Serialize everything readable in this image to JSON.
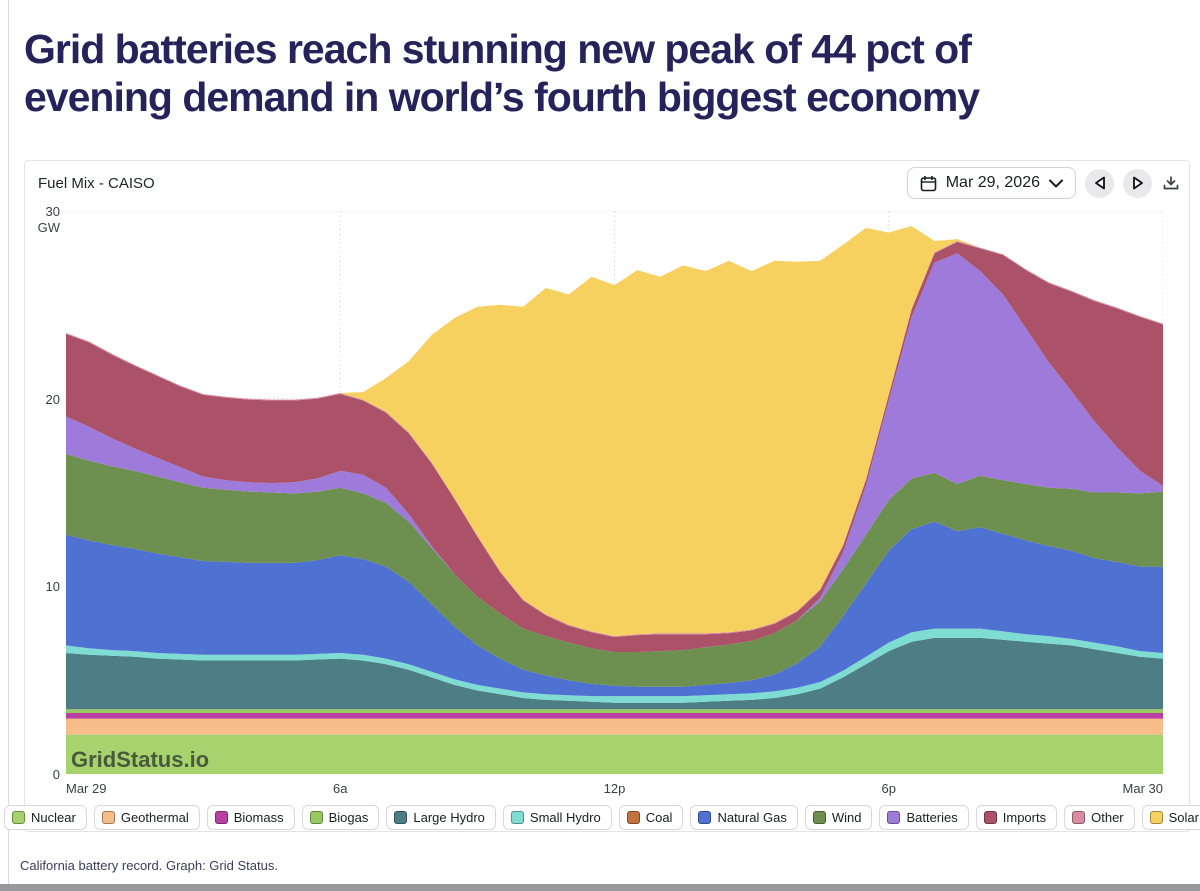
{
  "headline": {
    "line1": "Grid batteries reach stunning new peak of 44 pct of",
    "line2": "evening demand in world’s fourth biggest economy"
  },
  "caption": "California battery record. Graph: Grid Status.",
  "panel": {
    "title": "Fuel Mix - CAISO",
    "date_picker": {
      "label": "Mar 29, 2026",
      "calendar_icon": "calendar-icon",
      "chevron_icon": "chevron-down-icon"
    },
    "prev_icon": "triangle-left-icon",
    "next_icon": "triangle-right-icon",
    "download_icon": "download-icon"
  },
  "chart_data": {
    "type": "area",
    "stacked": true,
    "title": "Fuel Mix - CAISO",
    "ylabel": "GW",
    "y_unit_label": "GW",
    "ylim": [
      0,
      30
    ],
    "grid": true,
    "legend_position": "bottom",
    "x_start_hour": 0,
    "x_end_hour": 24,
    "step_hours": 0.5,
    "yticks": [
      {
        "v": 30,
        "label": "30"
      },
      {
        "v": 20,
        "label": "20"
      },
      {
        "v": 10,
        "label": "10"
      },
      {
        "v": 0,
        "label": "0"
      }
    ],
    "xticks": [
      {
        "t": 0,
        "label": "Mar 29",
        "align": "left"
      },
      {
        "t": 6,
        "label": "6a",
        "align": "center"
      },
      {
        "t": 12,
        "label": "12p",
        "align": "center"
      },
      {
        "t": 18,
        "label": "6p",
        "align": "center"
      },
      {
        "t": 24,
        "label": "Mar 30",
        "align": "right"
      }
    ],
    "grid_x_hours": [
      6,
      12,
      18,
      24
    ],
    "grid_y_values": [
      10,
      20,
      30
    ],
    "watermark": "GridStatus.io",
    "series": [
      {
        "name": "Nuclear",
        "color": "#a7d36f",
        "values": [
          2.1,
          2.1,
          2.1,
          2.1,
          2.1,
          2.1,
          2.1,
          2.1,
          2.1,
          2.1,
          2.1,
          2.1,
          2.1,
          2.1,
          2.1,
          2.1,
          2.1,
          2.1,
          2.1,
          2.1,
          2.1,
          2.1,
          2.1,
          2.1,
          2.1,
          2.1,
          2.1,
          2.1,
          2.1,
          2.1,
          2.1,
          2.1,
          2.1,
          2.1,
          2.1,
          2.1,
          2.1,
          2.1,
          2.1,
          2.1,
          2.1,
          2.1,
          2.1,
          2.1,
          2.1,
          2.1,
          2.1,
          2.1,
          2.1
        ]
      },
      {
        "name": "Geothermal",
        "color": "#f6bd8b",
        "values": [
          0.85,
          0.85,
          0.85,
          0.85,
          0.85,
          0.85,
          0.85,
          0.85,
          0.85,
          0.85,
          0.85,
          0.85,
          0.85,
          0.85,
          0.85,
          0.85,
          0.85,
          0.85,
          0.85,
          0.85,
          0.85,
          0.85,
          0.85,
          0.85,
          0.85,
          0.85,
          0.85,
          0.85,
          0.85,
          0.85,
          0.85,
          0.85,
          0.85,
          0.85,
          0.85,
          0.85,
          0.85,
          0.85,
          0.85,
          0.85,
          0.85,
          0.85,
          0.85,
          0.85,
          0.85,
          0.85,
          0.85,
          0.85,
          0.85
        ]
      },
      {
        "name": "Biomass",
        "color": "#ba3fa3",
        "values": [
          0.3,
          0.3,
          0.3,
          0.3,
          0.3,
          0.3,
          0.3,
          0.3,
          0.3,
          0.3,
          0.3,
          0.3,
          0.3,
          0.3,
          0.3,
          0.3,
          0.3,
          0.3,
          0.3,
          0.3,
          0.3,
          0.3,
          0.3,
          0.3,
          0.3,
          0.3,
          0.3,
          0.3,
          0.3,
          0.3,
          0.3,
          0.3,
          0.3,
          0.3,
          0.3,
          0.3,
          0.3,
          0.3,
          0.3,
          0.3,
          0.3,
          0.3,
          0.3,
          0.3,
          0.3,
          0.3,
          0.3,
          0.3,
          0.3
        ]
      },
      {
        "name": "Biogas",
        "color": "#99ca62",
        "values": [
          0.2,
          0.2,
          0.2,
          0.2,
          0.2,
          0.2,
          0.2,
          0.2,
          0.2,
          0.2,
          0.2,
          0.2,
          0.2,
          0.2,
          0.2,
          0.2,
          0.2,
          0.2,
          0.2,
          0.2,
          0.2,
          0.2,
          0.2,
          0.2,
          0.2,
          0.2,
          0.2,
          0.2,
          0.2,
          0.2,
          0.2,
          0.2,
          0.2,
          0.2,
          0.2,
          0.2,
          0.2,
          0.2,
          0.2,
          0.2,
          0.2,
          0.2,
          0.2,
          0.2,
          0.2,
          0.2,
          0.2,
          0.2,
          0.2
        ]
      },
      {
        "name": "Large Hydro",
        "color": "#4d7e86",
        "values": [
          3.0,
          2.9,
          2.85,
          2.8,
          2.7,
          2.65,
          2.6,
          2.6,
          2.6,
          2.6,
          2.6,
          2.65,
          2.7,
          2.6,
          2.4,
          2.1,
          1.7,
          1.3,
          1.0,
          0.8,
          0.6,
          0.5,
          0.45,
          0.4,
          0.35,
          0.35,
          0.35,
          0.35,
          0.4,
          0.45,
          0.5,
          0.6,
          0.8,
          1.1,
          1.7,
          2.4,
          3.1,
          3.6,
          3.8,
          3.8,
          3.8,
          3.7,
          3.6,
          3.5,
          3.4,
          3.2,
          3.0,
          2.8,
          2.7
        ]
      },
      {
        "name": "Small Hydro",
        "color": "#7edcd2",
        "values": [
          0.4,
          0.35,
          0.3,
          0.3,
          0.3,
          0.3,
          0.3,
          0.3,
          0.3,
          0.3,
          0.3,
          0.3,
          0.3,
          0.3,
          0.3,
          0.3,
          0.3,
          0.3,
          0.3,
          0.3,
          0.3,
          0.3,
          0.3,
          0.3,
          0.35,
          0.35,
          0.35,
          0.35,
          0.35,
          0.35,
          0.35,
          0.35,
          0.35,
          0.35,
          0.35,
          0.4,
          0.45,
          0.5,
          0.5,
          0.5,
          0.5,
          0.45,
          0.4,
          0.4,
          0.35,
          0.35,
          0.35,
          0.3,
          0.3
        ]
      },
      {
        "name": "Coal",
        "color": "#c17240",
        "values": [
          0,
          0,
          0,
          0,
          0,
          0,
          0,
          0,
          0,
          0,
          0,
          0,
          0,
          0,
          0,
          0,
          0,
          0,
          0,
          0,
          0,
          0,
          0,
          0,
          0,
          0,
          0,
          0,
          0,
          0,
          0,
          0,
          0,
          0,
          0,
          0,
          0,
          0,
          0,
          0,
          0,
          0,
          0,
          0,
          0,
          0,
          0,
          0,
          0
        ]
      },
      {
        "name": "Natural Gas",
        "color": "#4e71d2",
        "values": [
          5.9,
          5.75,
          5.6,
          5.45,
          5.3,
          5.15,
          5.0,
          4.95,
          4.9,
          4.9,
          4.9,
          5.0,
          5.2,
          5.1,
          4.9,
          4.4,
          3.6,
          2.8,
          2.1,
          1.6,
          1.2,
          1.0,
          0.8,
          0.65,
          0.55,
          0.5,
          0.5,
          0.5,
          0.55,
          0.6,
          0.7,
          0.9,
          1.3,
          1.9,
          2.9,
          3.9,
          4.9,
          5.5,
          5.7,
          5.2,
          5.4,
          5.2,
          5.0,
          4.8,
          4.7,
          4.5,
          4.5,
          4.5,
          4.6
        ]
      },
      {
        "name": "Wind",
        "color": "#6d9050",
        "values": [
          4.3,
          4.25,
          4.2,
          4.15,
          4.1,
          4.0,
          3.9,
          3.85,
          3.8,
          3.75,
          3.7,
          3.65,
          3.6,
          3.5,
          3.4,
          3.2,
          3.0,
          2.8,
          2.6,
          2.4,
          2.2,
          2.1,
          2.0,
          1.9,
          1.8,
          1.85,
          1.9,
          1.95,
          2.0,
          2.05,
          2.1,
          2.2,
          2.3,
          2.4,
          2.5,
          2.6,
          2.7,
          2.7,
          2.6,
          2.5,
          2.75,
          2.85,
          3.0,
          3.1,
          3.3,
          3.5,
          3.7,
          3.9,
          4.0
        ]
      },
      {
        "name": "Batteries",
        "color": "#9e7bdb",
        "values": [
          2.0,
          1.8,
          1.5,
          1.2,
          1.0,
          0.8,
          0.6,
          0.5,
          0.5,
          0.5,
          0.6,
          0.7,
          0.9,
          1.0,
          0.8,
          0.4,
          0.1,
          0,
          0,
          0,
          0,
          0,
          0,
          0,
          0,
          0,
          0,
          0,
          0,
          0,
          0,
          0,
          0,
          0.2,
          0.9,
          2.6,
          5.3,
          8.6,
          11.2,
          12.3,
          10.9,
          9.9,
          8.3,
          6.7,
          5.2,
          3.8,
          2.4,
          1.2,
          0.3
        ]
      },
      {
        "name": "Imports",
        "color": "#ab5269",
        "values": [
          4.4,
          4.5,
          4.45,
          4.4,
          4.35,
          4.3,
          4.35,
          4.4,
          4.4,
          4.4,
          4.35,
          4.25,
          4.1,
          3.95,
          4.0,
          4.3,
          4.4,
          4.0,
          3.2,
          2.2,
          1.5,
          1.1,
          0.9,
          0.85,
          0.8,
          0.9,
          0.9,
          0.85,
          0.7,
          0.6,
          0.55,
          0.5,
          0.45,
          0.4,
          0.35,
          0.3,
          0.3,
          0.4,
          0.5,
          0.6,
          1.2,
          2.1,
          3.1,
          4.2,
          5.3,
          6.4,
          7.4,
          8.2,
          8.6
        ]
      },
      {
        "name": "Other",
        "color": "#d98ba0",
        "values": [
          0.05,
          0.05,
          0.05,
          0.05,
          0.05,
          0.05,
          0.05,
          0.05,
          0.05,
          0.05,
          0.05,
          0.05,
          0.05,
          0.05,
          0.05,
          0.05,
          0.05,
          0.05,
          0.05,
          0.05,
          0.05,
          0.05,
          0.05,
          0.05,
          0.05,
          0.05,
          0.05,
          0.05,
          0.05,
          0.05,
          0.05,
          0.05,
          0.05,
          0.05,
          0.05,
          0.05,
          0.05,
          0.05,
          0.05,
          0.05,
          0.05,
          0.05,
          0.05,
          0.05,
          0.05,
          0.05,
          0.05,
          0.05,
          0.05
        ]
      },
      {
        "name": "Solar",
        "color": "#f6d160",
        "values": [
          0,
          0,
          0,
          0,
          0,
          0,
          0,
          0,
          0,
          0,
          0,
          0,
          0,
          0.4,
          1.8,
          3.8,
          6.8,
          9.6,
          12.2,
          14.2,
          15.6,
          17.4,
          17.6,
          18.9,
          18.7,
          19.4,
          19.0,
          19.6,
          19.3,
          19.8,
          19.1,
          19.3,
          18.6,
          17.5,
          16.0,
          13.4,
          8.6,
          4.4,
          0.6,
          0.1,
          0,
          0,
          0,
          0,
          0,
          0,
          0,
          0,
          0
        ]
      }
    ]
  }
}
